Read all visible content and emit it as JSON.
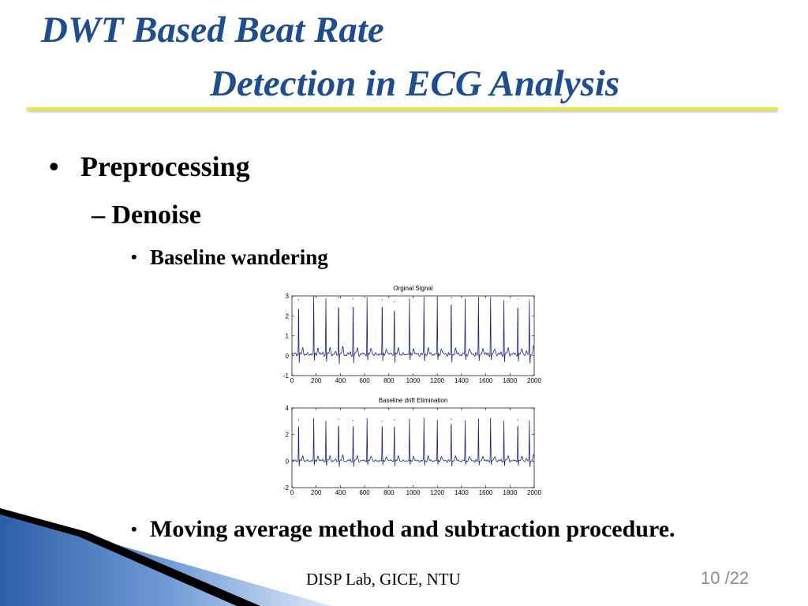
{
  "slide": {
    "title_line1": "DWT Based Beat Rate",
    "title_line2": "Detection in ECG Analysis",
    "bullet1": "Preprocessing",
    "bullet1_mark": "•",
    "bullet2": "Denoise",
    "bullet2_mark": "–",
    "bullet3": "Baseline wandering",
    "bullet3_mark": "•",
    "bullet4": "Moving average method and subtraction procedure.",
    "bullet4_mark": "•",
    "footer": "DISP Lab, GICE, NTU",
    "page_number": "10 /22"
  },
  "colors": {
    "title": "#1f4e8f",
    "title_rule": "#e6e84a",
    "signal": "#1a237e",
    "footer_page": "#8c8c8c"
  },
  "chart_data": [
    {
      "type": "line",
      "title": "Orginal Signal",
      "xlabel": "",
      "ylabel": "",
      "xlim": [
        0,
        2000
      ],
      "ylim": [
        -1,
        3
      ],
      "xticks": [
        0,
        200,
        400,
        600,
        800,
        1000,
        1200,
        1400,
        1600,
        1800,
        2000
      ],
      "yticks": [
        -1,
        0,
        1,
        2,
        3
      ],
      "grid": false,
      "series": [
        {
          "peaks_x": [
            55,
            180,
            280,
            385,
            505,
            620,
            745,
            845,
            970,
            1090,
            1200,
            1315,
            1430,
            1540,
            1640,
            1750,
            1865,
            1960
          ],
          "peaks_y": [
            2.8,
            2.95,
            2.85,
            2.9,
            2.85,
            2.9,
            2.8,
            2.7,
            2.85,
            2.9,
            2.85,
            2.9,
            2.8,
            2.85,
            2.9,
            2.75,
            2.85,
            2.8
          ],
          "baseline": 0.05,
          "t_wave_height": 0.35
        }
      ]
    },
    {
      "type": "line",
      "title": "Baseline drift Elimination",
      "xlabel": "",
      "ylabel": "",
      "xlim": [
        0,
        2000
      ],
      "ylim": [
        -2,
        4
      ],
      "xticks": [
        0,
        200,
        400,
        600,
        800,
        1000,
        1200,
        1400,
        1600,
        1800,
        2000
      ],
      "yticks": [
        -2,
        0,
        2,
        4
      ],
      "grid": false,
      "series": [
        {
          "peaks_x": [
            55,
            180,
            280,
            385,
            505,
            620,
            745,
            845,
            970,
            1090,
            1200,
            1315,
            1430,
            1540,
            1640,
            1750,
            1865,
            1960
          ],
          "peaks_y": [
            3.1,
            3.2,
            3.0,
            3.15,
            3.05,
            3.2,
            3.0,
            3.1,
            3.15,
            3.2,
            3.05,
            3.15,
            3.0,
            3.1,
            3.2,
            3.0,
            3.1,
            3.05
          ],
          "baseline": 0.0,
          "t_wave_height": 0.4
        }
      ]
    }
  ]
}
